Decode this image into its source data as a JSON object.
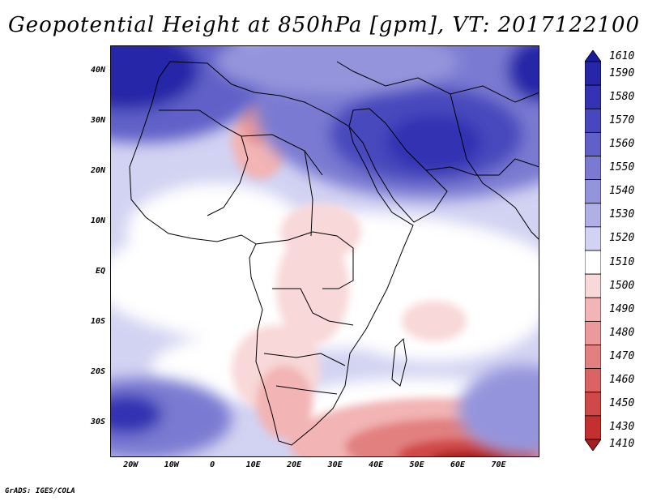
{
  "title": "Geopotential Height at 850hPa [gpm], VT: 2017122100",
  "footer": "GrADS: IGES/COLA",
  "map": {
    "lon_range": [
      -25,
      80
    ],
    "lat_range": [
      -37,
      45
    ],
    "lat_ticks": [
      {
        "lat": 40,
        "label": "40N"
      },
      {
        "lat": 30,
        "label": "30N"
      },
      {
        "lat": 20,
        "label": "20N"
      },
      {
        "lat": 10,
        "label": "10N"
      },
      {
        "lat": 0,
        "label": "EQ"
      },
      {
        "lat": -10,
        "label": "10S"
      },
      {
        "lat": -20,
        "label": "20S"
      },
      {
        "lat": -30,
        "label": "30S"
      }
    ],
    "lon_ticks": [
      {
        "lon": -20,
        "label": "20W"
      },
      {
        "lon": -10,
        "label": "10W"
      },
      {
        "lon": 0,
        "label": "0"
      },
      {
        "lon": 10,
        "label": "10E"
      },
      {
        "lon": 20,
        "label": "20E"
      },
      {
        "lon": 30,
        "label": "30E"
      },
      {
        "lon": 40,
        "label": "40E"
      },
      {
        "lon": 50,
        "label": "50E"
      },
      {
        "lon": 60,
        "label": "60E"
      },
      {
        "lon": 70,
        "label": "70E"
      }
    ]
  },
  "colorbar": {
    "levels": [
      {
        "label": "1610",
        "color": "#1a1aa0"
      },
      {
        "label": "1590",
        "color": "#2626a8"
      },
      {
        "label": "1580",
        "color": "#3333b3"
      },
      {
        "label": "1570",
        "color": "#4848be"
      },
      {
        "label": "1560",
        "color": "#6060c8"
      },
      {
        "label": "1550",
        "color": "#7a7ad2"
      },
      {
        "label": "1540",
        "color": "#9494dc"
      },
      {
        "label": "1530",
        "color": "#b0b0e6"
      },
      {
        "label": "1520",
        "color": "#d2d2f2"
      },
      {
        "label": "1510",
        "color": "#ffffff"
      },
      {
        "label": "1500",
        "color": "#f8d8d8"
      },
      {
        "label": "1490",
        "color": "#f2b4b4"
      },
      {
        "label": "1480",
        "color": "#ea9a9a"
      },
      {
        "label": "1470",
        "color": "#e28080"
      },
      {
        "label": "1460",
        "color": "#da6464"
      },
      {
        "label": "1450",
        "color": "#d04848"
      },
      {
        "label": "1430",
        "color": "#c43030"
      },
      {
        "label": "1410",
        "color": "#a81e1e"
      }
    ]
  }
}
